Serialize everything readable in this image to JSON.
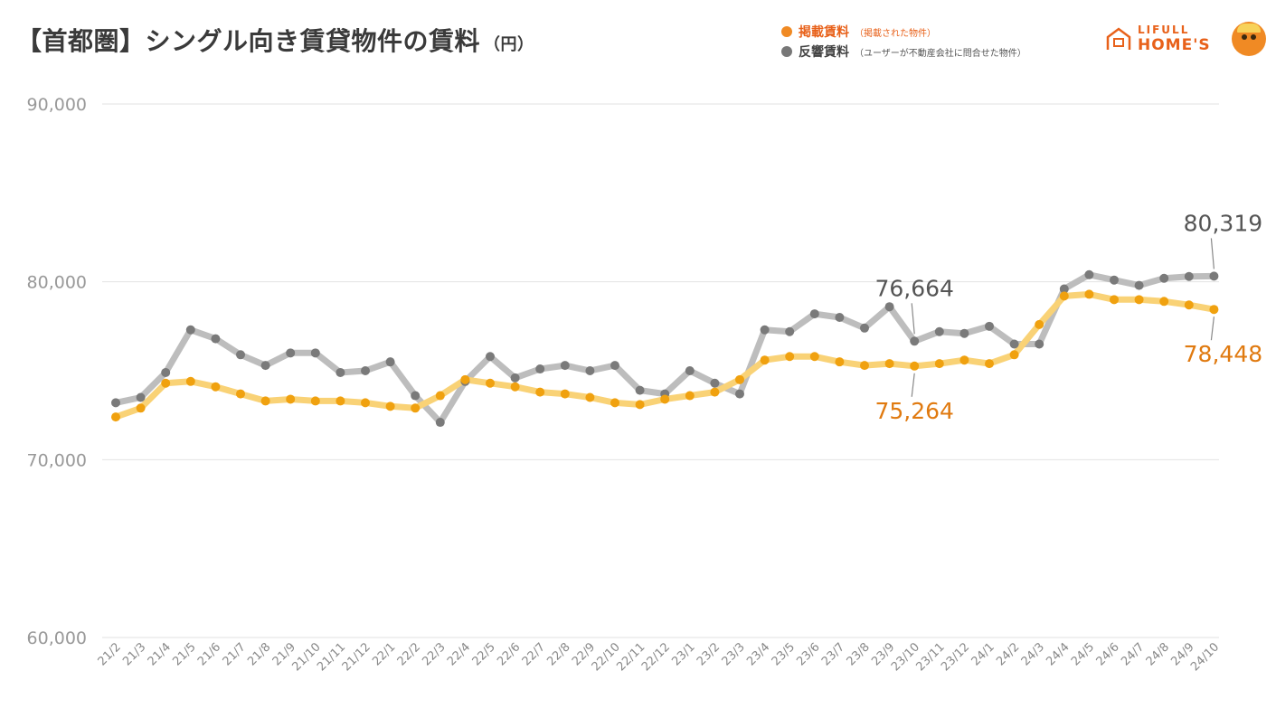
{
  "header": {
    "title": "【首都圏】シングル向き賃貸物件の賃料",
    "unit": "（円）"
  },
  "legend": [
    {
      "label": "掲載賃料",
      "note": "（掲載された物件）",
      "color": "#f08a24",
      "note_color": "#e8611a"
    },
    {
      "label": "反響賃料",
      "note": "（ユーザーが不動産会社に問合せた物件）",
      "color": "#777777",
      "note_color": "#555555"
    }
  ],
  "brand": {
    "line1": "LIFULL",
    "line2": "HOME'S",
    "icon": "house-icon",
    "mascot": "mascot-icon"
  },
  "chart_data": {
    "type": "line",
    "title": "【首都圏】シングル向き賃貸物件の賃料",
    "ylabel": "（円）",
    "ylim": [
      60000,
      90000
    ],
    "yticks": [
      60000,
      70000,
      80000,
      90000
    ],
    "ytick_labels": [
      "60,000",
      "70,000",
      "80,000",
      "90,000"
    ],
    "grid": true,
    "legend_position": "top-right",
    "x": [
      "21/2",
      "21/3",
      "21/4",
      "21/5",
      "21/6",
      "21/7",
      "21/8",
      "21/9",
      "21/10",
      "21/11",
      "21/12",
      "22/1",
      "22/2",
      "22/3",
      "22/4",
      "22/5",
      "22/6",
      "22/7",
      "22/8",
      "22/9",
      "22/10",
      "22/11",
      "22/12",
      "23/1",
      "23/2",
      "23/3",
      "23/4",
      "23/5",
      "23/6",
      "23/7",
      "23/8",
      "23/9",
      "23/10",
      "23/11",
      "23/12",
      "24/1",
      "24/2",
      "24/3",
      "24/4",
      "24/5",
      "24/6",
      "24/7",
      "24/8",
      "24/9",
      "24/10"
    ],
    "series": [
      {
        "name": "反響賃料",
        "color": "#bdbdbd",
        "marker_color": "#7a7a7a",
        "values": [
          73200,
          73500,
          74900,
          77300,
          76800,
          75900,
          75300,
          76000,
          76000,
          74900,
          75000,
          75500,
          73600,
          72100,
          74400,
          75800,
          74600,
          75100,
          75300,
          75000,
          75300,
          73900,
          73700,
          75000,
          74300,
          73700,
          77300,
          77200,
          78200,
          78000,
          77400,
          78600,
          76664,
          77200,
          77100,
          77500,
          76500,
          76500,
          79600,
          80400,
          80100,
          79800,
          80200,
          80300,
          80319
        ]
      },
      {
        "name": "掲載賃料",
        "color": "#f9d276",
        "marker_color": "#f0a10f",
        "values": [
          72400,
          72900,
          74300,
          74400,
          74100,
          73700,
          73300,
          73400,
          73300,
          73300,
          73200,
          73000,
          72900,
          73600,
          74500,
          74300,
          74100,
          73800,
          73700,
          73500,
          73200,
          73100,
          73400,
          73600,
          73800,
          74500,
          75600,
          75800,
          75800,
          75500,
          75300,
          75400,
          75264,
          75400,
          75600,
          75400,
          75900,
          77600,
          79200,
          79300,
          79000,
          79000,
          78900,
          78700,
          78448
        ]
      }
    ],
    "annotations": [
      {
        "text": "76,664",
        "series": 0,
        "index": 32,
        "color": "#555555",
        "placement": "above"
      },
      {
        "text": "80,319",
        "series": 0,
        "index": 44,
        "color": "#555555",
        "placement": "above"
      },
      {
        "text": "75,264",
        "series": 1,
        "index": 32,
        "color": "#e07a10",
        "placement": "below"
      },
      {
        "text": "78,448",
        "series": 1,
        "index": 44,
        "color": "#e07a10",
        "placement": "below"
      }
    ]
  }
}
